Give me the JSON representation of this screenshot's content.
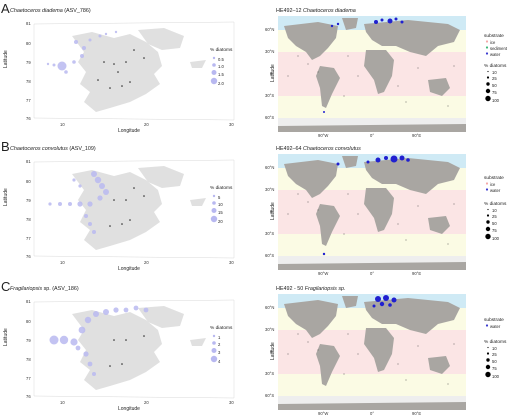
{
  "panels": [
    {
      "letter": "A",
      "left_title": {
        "species": "Chaetoceros diadema",
        "asv": "(ASV_786)"
      },
      "right_title": {
        "prefix": "HE492–12",
        "species": "Chaetoceros diadema"
      },
      "size_legend_title": "% diatoms",
      "size_legend_values": [
        "0.5",
        "1.0",
        "1.5",
        "2.0"
      ],
      "substrate_legend_title": "substrate",
      "substrates": [
        {
          "name": "ice",
          "color": "#f4a7a7"
        },
        {
          "name": "sediment",
          "color": "#3cb878"
        },
        {
          "name": "water",
          "color": "#3a3ad0"
        }
      ],
      "right_size_title": "% diatoms",
      "right_size_values": [
        "10",
        "25",
        "50",
        "75",
        "100"
      ]
    },
    {
      "letter": "B",
      "left_title": {
        "species": "Chaetoceros convolutus",
        "asv": "(ASV_109)"
      },
      "right_title": {
        "prefix": "HE492–64",
        "species": "Chaetoceros convolutus"
      },
      "size_legend_title": "% diatoms",
      "size_legend_values": [
        "5",
        "10",
        "15",
        "20"
      ],
      "substrate_legend_title": "substrate",
      "substrates": [
        {
          "name": "ice",
          "color": "#f4a7a7"
        },
        {
          "name": "water",
          "color": "#3a3ad0"
        }
      ],
      "right_size_title": "% diatoms",
      "right_size_values": [
        "10",
        "25",
        "50",
        "75",
        "100"
      ]
    },
    {
      "letter": "C",
      "left_title": {
        "species": "Fragilariopsis",
        "asv": "sp. (ASV_186)"
      },
      "right_title": {
        "prefix": "HE492 - 50",
        "species": "Fragilariopsis sp."
      },
      "size_legend_title": "% diatoms",
      "size_legend_values": [
        "1",
        "2",
        "3",
        "4"
      ],
      "substrate_legend_title": "substrate",
      "substrates": [
        {
          "name": "water",
          "color": "#3a3ad0"
        }
      ],
      "right_size_title": "% diatoms",
      "right_size_values": [
        "10",
        "25",
        "50",
        "75",
        "100"
      ]
    }
  ],
  "left_axes": {
    "xlabel": "Longitude",
    "ylabel": "Latitude",
    "x_ticks": [
      "10",
      "20",
      "30"
    ],
    "y_ticks": [
      "81",
      "80",
      "79",
      "78",
      "77",
      "76"
    ]
  },
  "right_axes": {
    "xlabel": "Longitude",
    "ylabel": "Latitude",
    "x_ticks": [
      "90°W",
      "0°",
      "90°E"
    ],
    "y_ticks": [
      "60°N",
      "30°N",
      "0°",
      "30°S",
      "60°S"
    ]
  },
  "colors": {
    "land_left": "#e0e0e0",
    "land_right": "#a9a6a2",
    "bubble": "#b8b8f0",
    "water_point": "#2020d0"
  }
}
